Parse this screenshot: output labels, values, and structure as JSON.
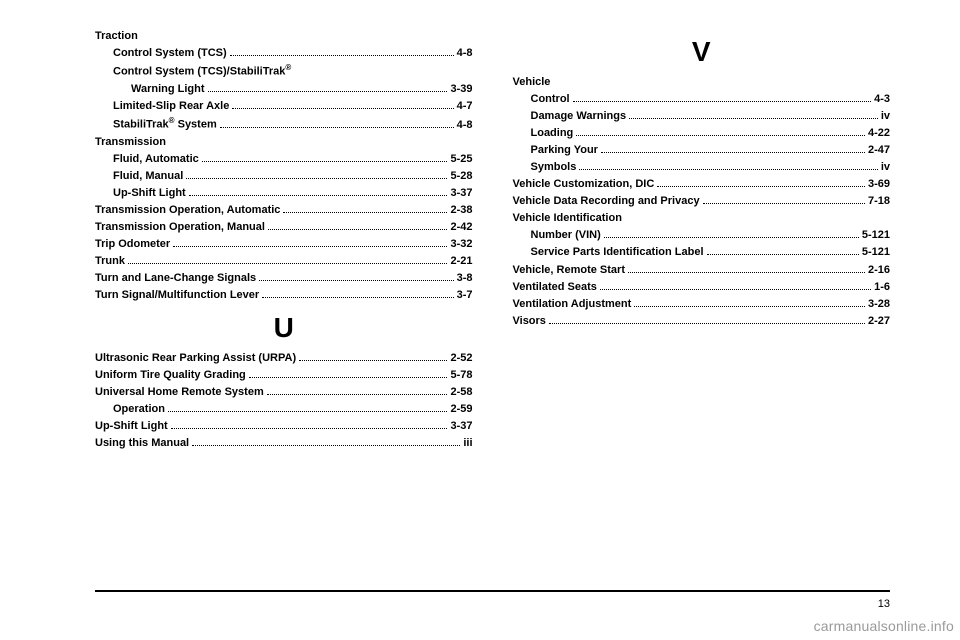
{
  "left": {
    "groups": [
      {
        "header": "Traction",
        "items": [
          {
            "indent": 1,
            "label": "Control System (TCS)",
            "page": "4-8"
          },
          {
            "indent": 1,
            "header": true,
            "label": "Control System (TCS)/StabiliTrak",
            "trademark": true
          },
          {
            "indent": 2,
            "label": "Warning Light",
            "page": "3-39"
          },
          {
            "indent": 1,
            "label": "Limited-Slip Rear Axle",
            "page": "4-7"
          },
          {
            "indent": 1,
            "label": "StabiliTrak",
            "trademark": true,
            "labelSuffix": " System",
            "page": "4-8"
          }
        ]
      },
      {
        "header": "Transmission",
        "items": [
          {
            "indent": 1,
            "label": "Fluid, Automatic",
            "page": "5-25"
          },
          {
            "indent": 1,
            "label": "Fluid, Manual",
            "page": "5-28"
          },
          {
            "indent": 1,
            "label": "Up-Shift Light",
            "page": "3-37"
          }
        ]
      },
      {
        "items": [
          {
            "indent": 0,
            "label": "Transmission Operation, Automatic",
            "page": "2-38"
          },
          {
            "indent": 0,
            "label": "Transmission Operation, Manual",
            "page": "2-42"
          },
          {
            "indent": 0,
            "label": "Trip Odometer",
            "page": "3-32"
          },
          {
            "indent": 0,
            "label": "Trunk",
            "page": "2-21"
          },
          {
            "indent": 0,
            "label": "Turn and Lane-Change Signals",
            "page": "3-8"
          },
          {
            "indent": 0,
            "label": "Turn Signal/Multifunction Lever",
            "page": "3-7"
          }
        ]
      }
    ],
    "letterSections": [
      {
        "letter": "U",
        "items": [
          {
            "indent": 0,
            "label": "Ultrasonic Rear Parking Assist (URPA)",
            "page": "2-52"
          },
          {
            "indent": 0,
            "label": "Uniform Tire Quality Grading",
            "page": "5-78"
          },
          {
            "indent": 0,
            "label": "Universal Home Remote System",
            "page": "2-58"
          },
          {
            "indent": 1,
            "label": "Operation",
            "page": "2-59"
          },
          {
            "indent": 0,
            "label": "Up-Shift Light",
            "page": "3-37"
          },
          {
            "indent": 0,
            "label": "Using this Manual",
            "page": "iii"
          }
        ]
      }
    ]
  },
  "right": {
    "letterSections": [
      {
        "letter": "V",
        "groups": [
          {
            "header": "Vehicle",
            "items": [
              {
                "indent": 1,
                "label": "Control",
                "page": "4-3"
              },
              {
                "indent": 1,
                "label": "Damage Warnings",
                "page": "iv"
              },
              {
                "indent": 1,
                "label": "Loading",
                "page": "4-22"
              },
              {
                "indent": 1,
                "label": "Parking Your",
                "page": "2-47"
              },
              {
                "indent": 1,
                "label": "Symbols",
                "page": "iv"
              }
            ]
          },
          {
            "items": [
              {
                "indent": 0,
                "label": "Vehicle Customization, DIC",
                "page": "3-69"
              },
              {
                "indent": 0,
                "label": "Vehicle Data Recording and Privacy",
                "page": "7-18"
              }
            ]
          },
          {
            "header": "Vehicle Identification",
            "items": [
              {
                "indent": 1,
                "label": "Number (VIN)",
                "page": "5-121"
              },
              {
                "indent": 1,
                "label": "Service Parts Identification Label",
                "page": "5-121"
              }
            ]
          },
          {
            "items": [
              {
                "indent": 0,
                "label": "Vehicle, Remote Start",
                "page": "2-16"
              },
              {
                "indent": 0,
                "label": "Ventilated Seats",
                "page": "1-6"
              },
              {
                "indent": 0,
                "label": "Ventilation Adjustment",
                "page": "3-28"
              },
              {
                "indent": 0,
                "label": "Visors",
                "page": "2-27"
              }
            ]
          }
        ]
      }
    ]
  },
  "pageNumber": "13",
  "watermark": "carmanualsonline.info"
}
